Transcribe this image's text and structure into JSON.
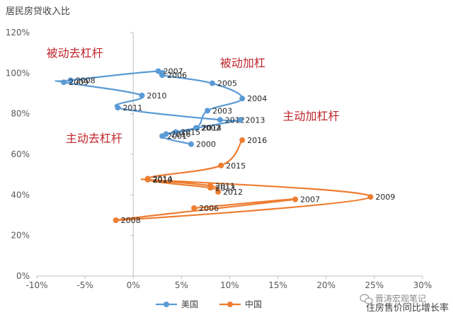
{
  "chart_data": {
    "type": "scatter",
    "title": "",
    "xlabel": "住房售价同比增长率",
    "ylabel": "居民房贷收入比",
    "xlim": [
      -0.1,
      0.3
    ],
    "ylim": [
      0.0,
      1.2
    ],
    "x_ticks": [
      "-10%",
      "-5%",
      "0%",
      "5%",
      "10%",
      "15%",
      "20%",
      "25%",
      "30%"
    ],
    "y_ticks": [
      "0%",
      "20%",
      "40%",
      "60%",
      "80%",
      "100%",
      "120%"
    ],
    "series": [
      {
        "name": "美国",
        "color": "#5b9bd5",
        "points": [
          {
            "label": "2000",
            "x": 0.06,
            "y": 0.65
          },
          {
            "label": "2001",
            "x": 0.03,
            "y": 0.69
          },
          {
            "label": "2002",
            "x": 0.065,
            "y": 0.73
          },
          {
            "label": "2003",
            "x": 0.077,
            "y": 0.815
          },
          {
            "label": "2004",
            "x": 0.113,
            "y": 0.875
          },
          {
            "label": "2005",
            "x": 0.082,
            "y": 0.95
          },
          {
            "label": "2006",
            "x": 0.03,
            "y": 0.99
          },
          {
            "label": "2007",
            "x": 0.026,
            "y": 1.01
          },
          {
            "label": "2008",
            "x": -0.065,
            "y": 0.965
          },
          {
            "label": "2009",
            "x": -0.072,
            "y": 0.955
          },
          {
            "label": "2010",
            "x": 0.009,
            "y": 0.89
          },
          {
            "label": "2011",
            "x": -0.016,
            "y": 0.83
          },
          {
            "label": "2012",
            "x": 0.09,
            "y": 0.77
          },
          {
            "label": "2013",
            "x": 0.111,
            "y": 0.77
          },
          {
            "label": "2014",
            "x": 0.066,
            "y": 0.73
          },
          {
            "label": "2015",
            "x": 0.044,
            "y": 0.71
          },
          {
            "label": "2016",
            "x": 0.034,
            "y": 0.7
          }
        ]
      },
      {
        "name": "中国",
        "color": "#ed7d31",
        "points": [
          {
            "label": "2006",
            "x": 0.063,
            "y": 0.335
          },
          {
            "label": "2007",
            "x": 0.168,
            "y": 0.378
          },
          {
            "label": "2008",
            "x": -0.018,
            "y": 0.275
          },
          {
            "label": "2009",
            "x": 0.246,
            "y": 0.39
          },
          {
            "label": "2010",
            "x": 0.015,
            "y": 0.475
          },
          {
            "label": "2011",
            "x": 0.08,
            "y": 0.445
          },
          {
            "label": "2012",
            "x": 0.088,
            "y": 0.415
          },
          {
            "label": "2013",
            "x": 0.08,
            "y": 0.435
          },
          {
            "label": "2014",
            "x": 0.015,
            "y": 0.48
          },
          {
            "label": "2015",
            "x": 0.091,
            "y": 0.545
          },
          {
            "label": "2016",
            "x": 0.113,
            "y": 0.67
          }
        ]
      }
    ],
    "quadrant_labels": [
      {
        "text": "被动去杠杆",
        "x": -0.09,
        "y": 1.08
      },
      {
        "text": "被动加杠",
        "x": 0.09,
        "y": 1.03
      },
      {
        "text": "主动加杠杆",
        "x": 0.155,
        "y": 0.77
      },
      {
        "text": "主动去杠杆",
        "x": -0.07,
        "y": 0.66
      }
    ],
    "legend_position": "bottom-center",
    "grid": false
  },
  "watermark": "晋涛宏观笔记"
}
